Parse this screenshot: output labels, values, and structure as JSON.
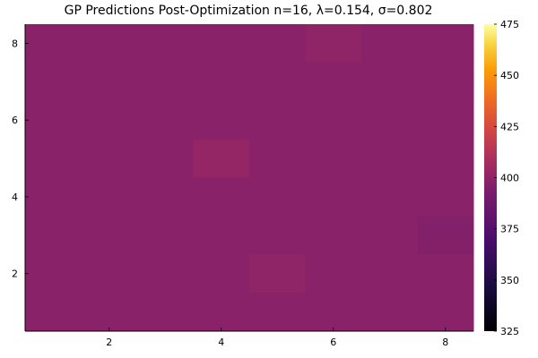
{
  "chart_data": {
    "type": "heatmap",
    "title": "GP Predictions Post-Optimization n=16, λ=0.154, σ=0.802",
    "xlabel": "",
    "ylabel": "",
    "x_ticks": [
      "2",
      "4",
      "6",
      "8"
    ],
    "y_ticks": [
      "2",
      "4",
      "6",
      "8"
    ],
    "colorbar_ticks": [
      "325",
      "350",
      "375",
      "400",
      "425",
      "450",
      "475"
    ],
    "xlim": [
      0.5,
      8.5
    ],
    "ylim": [
      0.5,
      8.5
    ],
    "clim": [
      325,
      475
    ],
    "colormap": "inferno",
    "grid": false,
    "x": [
      1,
      2,
      3,
      4,
      5,
      6,
      7,
      8
    ],
    "y": [
      1,
      2,
      3,
      4,
      5,
      6,
      7,
      8
    ],
    "z_rows_top_to_bottom": [
      [
        398,
        398,
        398,
        398,
        398,
        400,
        398,
        398
      ],
      [
        398,
        398,
        398,
        398,
        398,
        398,
        398,
        398
      ],
      [
        398,
        398,
        398,
        398,
        398,
        398,
        398,
        398
      ],
      [
        398,
        398,
        398,
        402,
        398,
        398,
        398,
        398
      ],
      [
        398,
        398,
        398,
        398,
        398,
        398,
        398,
        398
      ],
      [
        398,
        398,
        398,
        398,
        398,
        398,
        398,
        396
      ],
      [
        398,
        398,
        398,
        398,
        400,
        398,
        398,
        398
      ],
      [
        398,
        398,
        398,
        398,
        398,
        398,
        398,
        398
      ]
    ]
  }
}
